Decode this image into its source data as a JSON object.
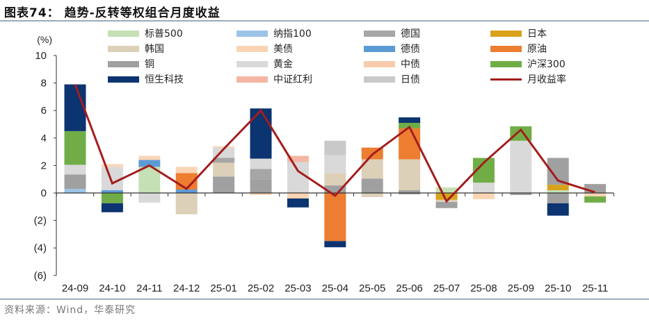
{
  "title": "图表74： 趋势-反转等权组合月度收益",
  "source": "资料来源：Wind，华泰研究",
  "legend": [
    {
      "label": "标普500",
      "color": "#c5e0b4"
    },
    {
      "label": "纳指100",
      "color": "#9dc3e6"
    },
    {
      "label": "德国",
      "color": "#a6a6a6"
    },
    {
      "label": "日本",
      "color": "#d9a21b"
    },
    {
      "label": "韩国",
      "color": "#ddd0b8"
    },
    {
      "label": "美债",
      "color": "#fad5b5"
    },
    {
      "label": "德债",
      "color": "#5b9bd5"
    },
    {
      "label": "原油",
      "color": "#ed7d31"
    },
    {
      "label": "铜",
      "color": "#a0a0a0"
    },
    {
      "label": "黄金",
      "color": "#d9d9d9"
    },
    {
      "label": "中债",
      "color": "#f8cbad"
    },
    {
      "label": "沪深300",
      "color": "#70ad47"
    },
    {
      "label": "恒生科技",
      "color": "#0b3470"
    },
    {
      "label": "中证红利",
      "color": "#f4b6a2"
    },
    {
      "label": "日债",
      "color": "#c9c9c9"
    },
    {
      "label": "月收益率",
      "color": "#a31d1d",
      "type": "line"
    }
  ],
  "chart_data": {
    "type": "bar",
    "subtype": "stacked bar + line",
    "title": "趋势-反转等权组合月度收益",
    "ylabel": "(%)",
    "xlabel": "",
    "ylim": [
      -6,
      10
    ],
    "yticks": [
      10,
      8,
      6,
      4,
      2,
      0,
      -2,
      -4,
      -6
    ],
    "ytick_labels": [
      "10",
      "8",
      "6",
      "4",
      "2",
      "0",
      "(2)",
      "(4)",
      "(6)"
    ],
    "categories": [
      "24-09",
      "24-10",
      "24-11",
      "24-12",
      "25-01",
      "25-02",
      "25-03",
      "25-04",
      "25-05",
      "25-06",
      "25-07",
      "25-08",
      "25-09",
      "25-10",
      "25-11"
    ],
    "legend_position": "top",
    "grid": false,
    "stacks": [
      {
        "cat": "24-09",
        "segments": [
          {
            "s": "纳指100",
            "v": 0.3
          },
          {
            "s": "铜",
            "v": 1.05
          },
          {
            "s": "黄金",
            "v": 0.7
          },
          {
            "s": "沪深300",
            "v": 2.45
          },
          {
            "s": "恒生科技",
            "v": 3.4
          }
        ]
      },
      {
        "cat": "24-10",
        "segments": [
          {
            "s": "德债",
            "v": 0.2
          },
          {
            "s": "黄金",
            "v": 1.7
          },
          {
            "s": "美债",
            "v": 0.2
          },
          {
            "s": "沪深300",
            "v": -0.75
          },
          {
            "s": "恒生科技",
            "v": -0.65
          }
        ]
      },
      {
        "cat": "24-11",
        "segments": [
          {
            "s": "标普500",
            "v": 1.9
          },
          {
            "s": "德债",
            "v": 0.5
          },
          {
            "s": "美债",
            "v": 0.3
          },
          {
            "s": "黄金",
            "v": -0.7
          }
        ]
      },
      {
        "cat": "24-12",
        "segments": [
          {
            "s": "德债",
            "v": 0.25
          },
          {
            "s": "原油",
            "v": 1.2
          },
          {
            "s": "美债",
            "v": 0.45
          },
          {
            "s": "韩国",
            "v": -1.55
          }
        ]
      },
      {
        "cat": "25-01",
        "segments": [
          {
            "s": "铜",
            "v": 1.2
          },
          {
            "s": "韩国",
            "v": 1.0
          },
          {
            "s": "德国",
            "v": 0.35
          },
          {
            "s": "黄金",
            "v": 0.75
          },
          {
            "s": "美债",
            "v": 0.1
          }
        ]
      },
      {
        "cat": "25-02",
        "segments": [
          {
            "s": "铜",
            "v": 1.0
          },
          {
            "s": "德国",
            "v": 0.75
          },
          {
            "s": "黄金",
            "v": 0.75
          },
          {
            "s": "恒生科技",
            "v": 3.65
          },
          {
            "s": "美债",
            "v": -0.15
          }
        ]
      },
      {
        "cat": "25-03",
        "segments": [
          {
            "s": "黄金",
            "v": 2.25
          },
          {
            "s": "中证红利",
            "v": 0.45
          },
          {
            "s": "美债",
            "v": -0.4
          },
          {
            "s": "恒生科技",
            "v": -0.65
          }
        ]
      },
      {
        "cat": "25-04",
        "segments": [
          {
            "s": "铜",
            "v": 0.55
          },
          {
            "s": "韩国",
            "v": 0.9
          },
          {
            "s": "黄金",
            "v": 1.3
          },
          {
            "s": "日债",
            "v": 1.05
          },
          {
            "s": "原油",
            "v": -3.5
          },
          {
            "s": "恒生科技",
            "v": -0.45
          }
        ]
      },
      {
        "cat": "25-05",
        "segments": [
          {
            "s": "铜",
            "v": 1.05
          },
          {
            "s": "韩国",
            "v": 1.4
          },
          {
            "s": "原油",
            "v": 0.85
          },
          {
            "s": "韩国",
            "v": -0.3
          }
        ]
      },
      {
        "cat": "25-06",
        "segments": [
          {
            "s": "铜",
            "v": 0.2
          },
          {
            "s": "韩国",
            "v": 2.25
          },
          {
            "s": "原油",
            "v": 2.25
          },
          {
            "s": "沪深300",
            "v": 0.4
          },
          {
            "s": "恒生科技",
            "v": 0.4
          },
          {
            "s": "铜",
            "v": -0.1
          }
        ]
      },
      {
        "cat": "25-07",
        "segments": [
          {
            "s": "标普500",
            "v": 0.4
          },
          {
            "s": "日本",
            "v": -0.5
          },
          {
            "s": "韩国",
            "v": -0.15
          },
          {
            "s": "铜",
            "v": -0.45
          }
        ]
      },
      {
        "cat": "25-08",
        "segments": [
          {
            "s": "黄金",
            "v": 0.75
          },
          {
            "s": "沪深300",
            "v": 1.8
          },
          {
            "s": "美债",
            "v": -0.45
          }
        ]
      },
      {
        "cat": "25-09",
        "segments": [
          {
            "s": "黄金",
            "v": 3.8
          },
          {
            "s": "沪深300",
            "v": 1.05
          },
          {
            "s": "铜",
            "v": -0.15
          }
        ]
      },
      {
        "cat": "25-10",
        "segments": [
          {
            "s": "标普500",
            "v": 0.2
          },
          {
            "s": "日本",
            "v": 0.4
          },
          {
            "s": "铜",
            "v": 1.95
          },
          {
            "s": "铜",
            "v": -0.75
          },
          {
            "s": "恒生科技",
            "v": -0.9
          }
        ]
      },
      {
        "cat": "25-11",
        "segments": [
          {
            "s": "铜",
            "v": 0.65
          },
          {
            "s": "美债",
            "v": -0.25
          },
          {
            "s": "沪深300",
            "v": -0.45
          }
        ]
      }
    ],
    "series": [
      {
        "name": "月收益率",
        "type": "line",
        "values": [
          7.9,
          0.7,
          2.0,
          0.3,
          3.2,
          6.0,
          1.6,
          -0.2,
          2.8,
          4.8,
          -0.6,
          2.2,
          4.6,
          0.9,
          0.05
        ]
      }
    ]
  }
}
